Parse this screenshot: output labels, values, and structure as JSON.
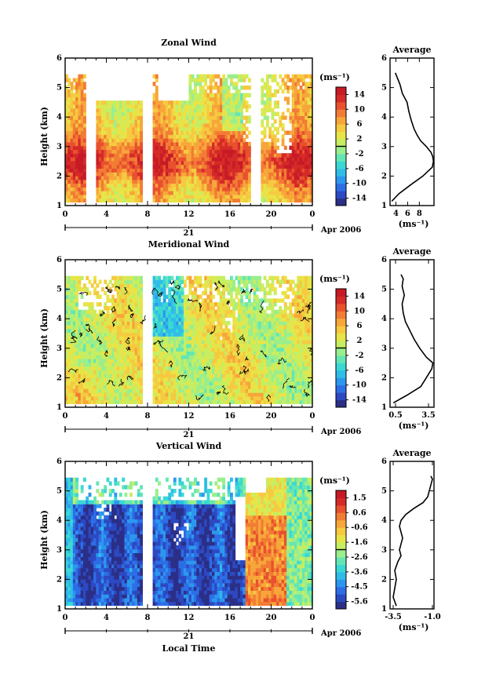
{
  "chart_data": [
    {
      "type": "heatmap",
      "title": "Zonal Wind",
      "ylabel": "Height (km)",
      "ylim": [
        1,
        6
      ],
      "y_ticks": [
        "1",
        "2",
        "3",
        "4",
        "5",
        "6"
      ],
      "xlim": [
        0,
        24
      ],
      "x_ticks": [
        "0",
        "4",
        "8",
        "12",
        "16",
        "20",
        "0"
      ],
      "date_label": "21",
      "month_label": "Apr 2006",
      "colorbar": {
        "unit": "(ms⁻¹)",
        "range": [
          -16,
          16
        ],
        "tick_labels": [
          "14",
          "10",
          "6",
          "2",
          "-2",
          "-6",
          "-10",
          "-14"
        ],
        "colors": [
          "#2b2f86",
          "#2c49c2",
          "#2d6ee6",
          "#2c97ee",
          "#2fbde8",
          "#3ad8d4",
          "#64e6b4",
          "#9aee8c",
          "#c6ee62",
          "#e8e448",
          "#f6ca40",
          "#f7a63a",
          "#f27c34",
          "#e8502e",
          "#d52a28",
          "#c61a26"
        ]
      },
      "data_gaps_hours": [
        [
          2.0,
          3.0
        ],
        [
          7.6,
          8.6
        ],
        [
          18.1,
          19.0
        ]
      ],
      "contour_zero": false,
      "average_profile": {
        "title": "Average",
        "xlabel": "(ms⁻¹)",
        "xlim": [
          3,
          10.5
        ],
        "x_ticks": [
          "4",
          "6",
          "8"
        ],
        "heights_km": [
          1.15,
          1.4,
          1.7,
          2.0,
          2.3,
          2.5,
          2.65,
          2.8,
          3.0,
          3.2,
          3.4,
          3.6,
          3.9,
          4.2,
          4.5,
          4.8,
          5.1,
          5.35,
          5.5
        ],
        "values": [
          3.3,
          4.5,
          6.5,
          8.6,
          10.2,
          10.4,
          10.3,
          10.0,
          9.2,
          8.2,
          7.6,
          7.1,
          6.6,
          6.2,
          5.9,
          5.1,
          4.7,
          4.2,
          3.9
        ]
      }
    },
    {
      "type": "heatmap",
      "title": "Meridional Wind",
      "ylabel": "Height (km)",
      "ylim": [
        1,
        6
      ],
      "y_ticks": [
        "1",
        "2",
        "3",
        "4",
        "5",
        "6"
      ],
      "xlim": [
        0,
        24
      ],
      "x_ticks": [
        "0",
        "4",
        "8",
        "12",
        "16",
        "20",
        "0"
      ],
      "date_label": "21",
      "month_label": "Apr 2006",
      "colorbar": {
        "unit": "(ms⁻¹)",
        "range": [
          -16,
          16
        ],
        "tick_labels": [
          "14",
          "10",
          "6",
          "2",
          "-2",
          "-6",
          "-10",
          "-14"
        ],
        "colors": [
          "#2b2f86",
          "#2c49c2",
          "#2d6ee6",
          "#2c97ee",
          "#2fbde8",
          "#3ad8d4",
          "#64e6b4",
          "#9aee8c",
          "#c6ee62",
          "#e8e448",
          "#f6ca40",
          "#f7a63a",
          "#f27c34",
          "#e8502e",
          "#d52a28",
          "#c61a26"
        ]
      },
      "data_gaps_hours": [
        [
          7.6,
          8.6
        ]
      ],
      "contour_zero": true,
      "average_profile": {
        "title": "Average",
        "xlabel": "(ms⁻¹)",
        "xlim": [
          0,
          4
        ],
        "x_ticks": [
          "0.5",
          "3.5"
        ],
        "heights_km": [
          1.15,
          1.4,
          1.7,
          2.0,
          2.3,
          2.5,
          2.7,
          3.0,
          3.3,
          3.6,
          3.9,
          4.2,
          4.5,
          4.8,
          5.1,
          5.35,
          5.5
        ],
        "values": [
          0.3,
          1.5,
          2.8,
          3.3,
          3.8,
          3.9,
          3.3,
          2.7,
          2.2,
          1.8,
          1.4,
          1.2,
          1.1,
          1.3,
          1.1,
          1.2,
          1.0
        ]
      }
    },
    {
      "type": "heatmap",
      "title": "Vertical Wind",
      "ylabel": "Height (km)",
      "ylim": [
        1,
        6
      ],
      "y_ticks": [
        "1",
        "2",
        "3",
        "4",
        "5",
        "6"
      ],
      "xlim": [
        0,
        24
      ],
      "x_ticks": [
        "0",
        "4",
        "8",
        "12",
        "16",
        "20",
        "0"
      ],
      "xlabel": "Local Time",
      "date_label": "21",
      "month_label": "Apr 2006",
      "colorbar": {
        "unit": "(ms⁻¹)",
        "range": [
          -6,
          2
        ],
        "tick_labels": [
          "1.5",
          "0.6",
          "-0.6",
          "-1.6",
          "-2.6",
          "-3.6",
          "-4.5",
          "-5.6"
        ],
        "colors": [
          "#2b2f86",
          "#2c49c2",
          "#2d6ee6",
          "#2c97ee",
          "#2fbde8",
          "#3ad8d4",
          "#64e6b4",
          "#9aee8c",
          "#c6ee62",
          "#e8e448",
          "#f6ca40",
          "#f7a63a",
          "#f27c34",
          "#e8502e",
          "#d52a28",
          "#c61a26"
        ]
      },
      "data_gaps_hours": [
        [
          7.6,
          8.6
        ]
      ],
      "contour_zero": false,
      "average_profile": {
        "title": "Average",
        "xlabel": "(ms⁻¹)",
        "xlim": [
          -3.7,
          -0.9
        ],
        "x_ticks": [
          "-3.5",
          "-1.0"
        ],
        "heights_km": [
          1.1,
          1.4,
          1.7,
          2.0,
          2.3,
          2.6,
          2.8,
          3.0,
          3.2,
          3.4,
          3.6,
          3.8,
          4.0,
          4.2,
          4.4,
          4.6,
          4.8,
          5.0,
          5.2,
          5.4,
          5.5
        ],
        "values": [
          -3.3,
          -3.5,
          -3.4,
          -3.3,
          -3.4,
          -3.2,
          -3.0,
          -3.1,
          -3.0,
          -2.9,
          -3.0,
          -3.1,
          -3.0,
          -2.7,
          -2.2,
          -1.6,
          -1.3,
          -1.2,
          -1.1,
          -1.0,
          -1.1
        ]
      }
    }
  ]
}
